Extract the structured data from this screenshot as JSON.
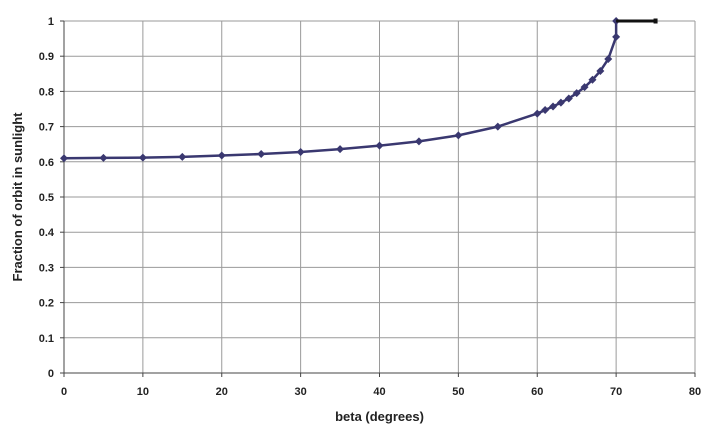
{
  "chart_data": {
    "type": "line",
    "title": "",
    "xlabel": "beta (degrees)",
    "ylabel": "Fraction of orbit in sunlight",
    "xlim": [
      0,
      80
    ],
    "ylim": [
      0,
      1
    ],
    "x_ticks": [
      "0",
      "10",
      "20",
      "30",
      "40",
      "50",
      "60",
      "70",
      "80"
    ],
    "y_ticks": [
      "0",
      "0.1",
      "0.2",
      "0.3",
      "0.4",
      "0.5",
      "0.6",
      "0.7",
      "0.8",
      "0.9",
      "1"
    ],
    "grid": true,
    "legend": "none",
    "series": [
      {
        "color": "#3a3870",
        "marker": "diamond",
        "x": [
          0,
          5,
          10,
          15,
          20,
          25,
          30,
          35,
          40,
          45,
          50,
          55,
          60,
          61,
          62,
          63,
          64,
          65,
          66,
          67,
          68,
          69,
          70,
          70
        ],
        "values": [
          0.61,
          0.611,
          0.612,
          0.614,
          0.618,
          0.622,
          0.628,
          0.636,
          0.646,
          0.658,
          0.675,
          0.7,
          0.737,
          0.747,
          0.757,
          0.768,
          0.78,
          0.795,
          0.812,
          0.833,
          0.858,
          0.892,
          0.955,
          1.0
        ]
      },
      {
        "color": "#111111",
        "marker": "none",
        "x": [
          70,
          75
        ],
        "values": [
          1.0,
          1.0
        ]
      }
    ]
  }
}
